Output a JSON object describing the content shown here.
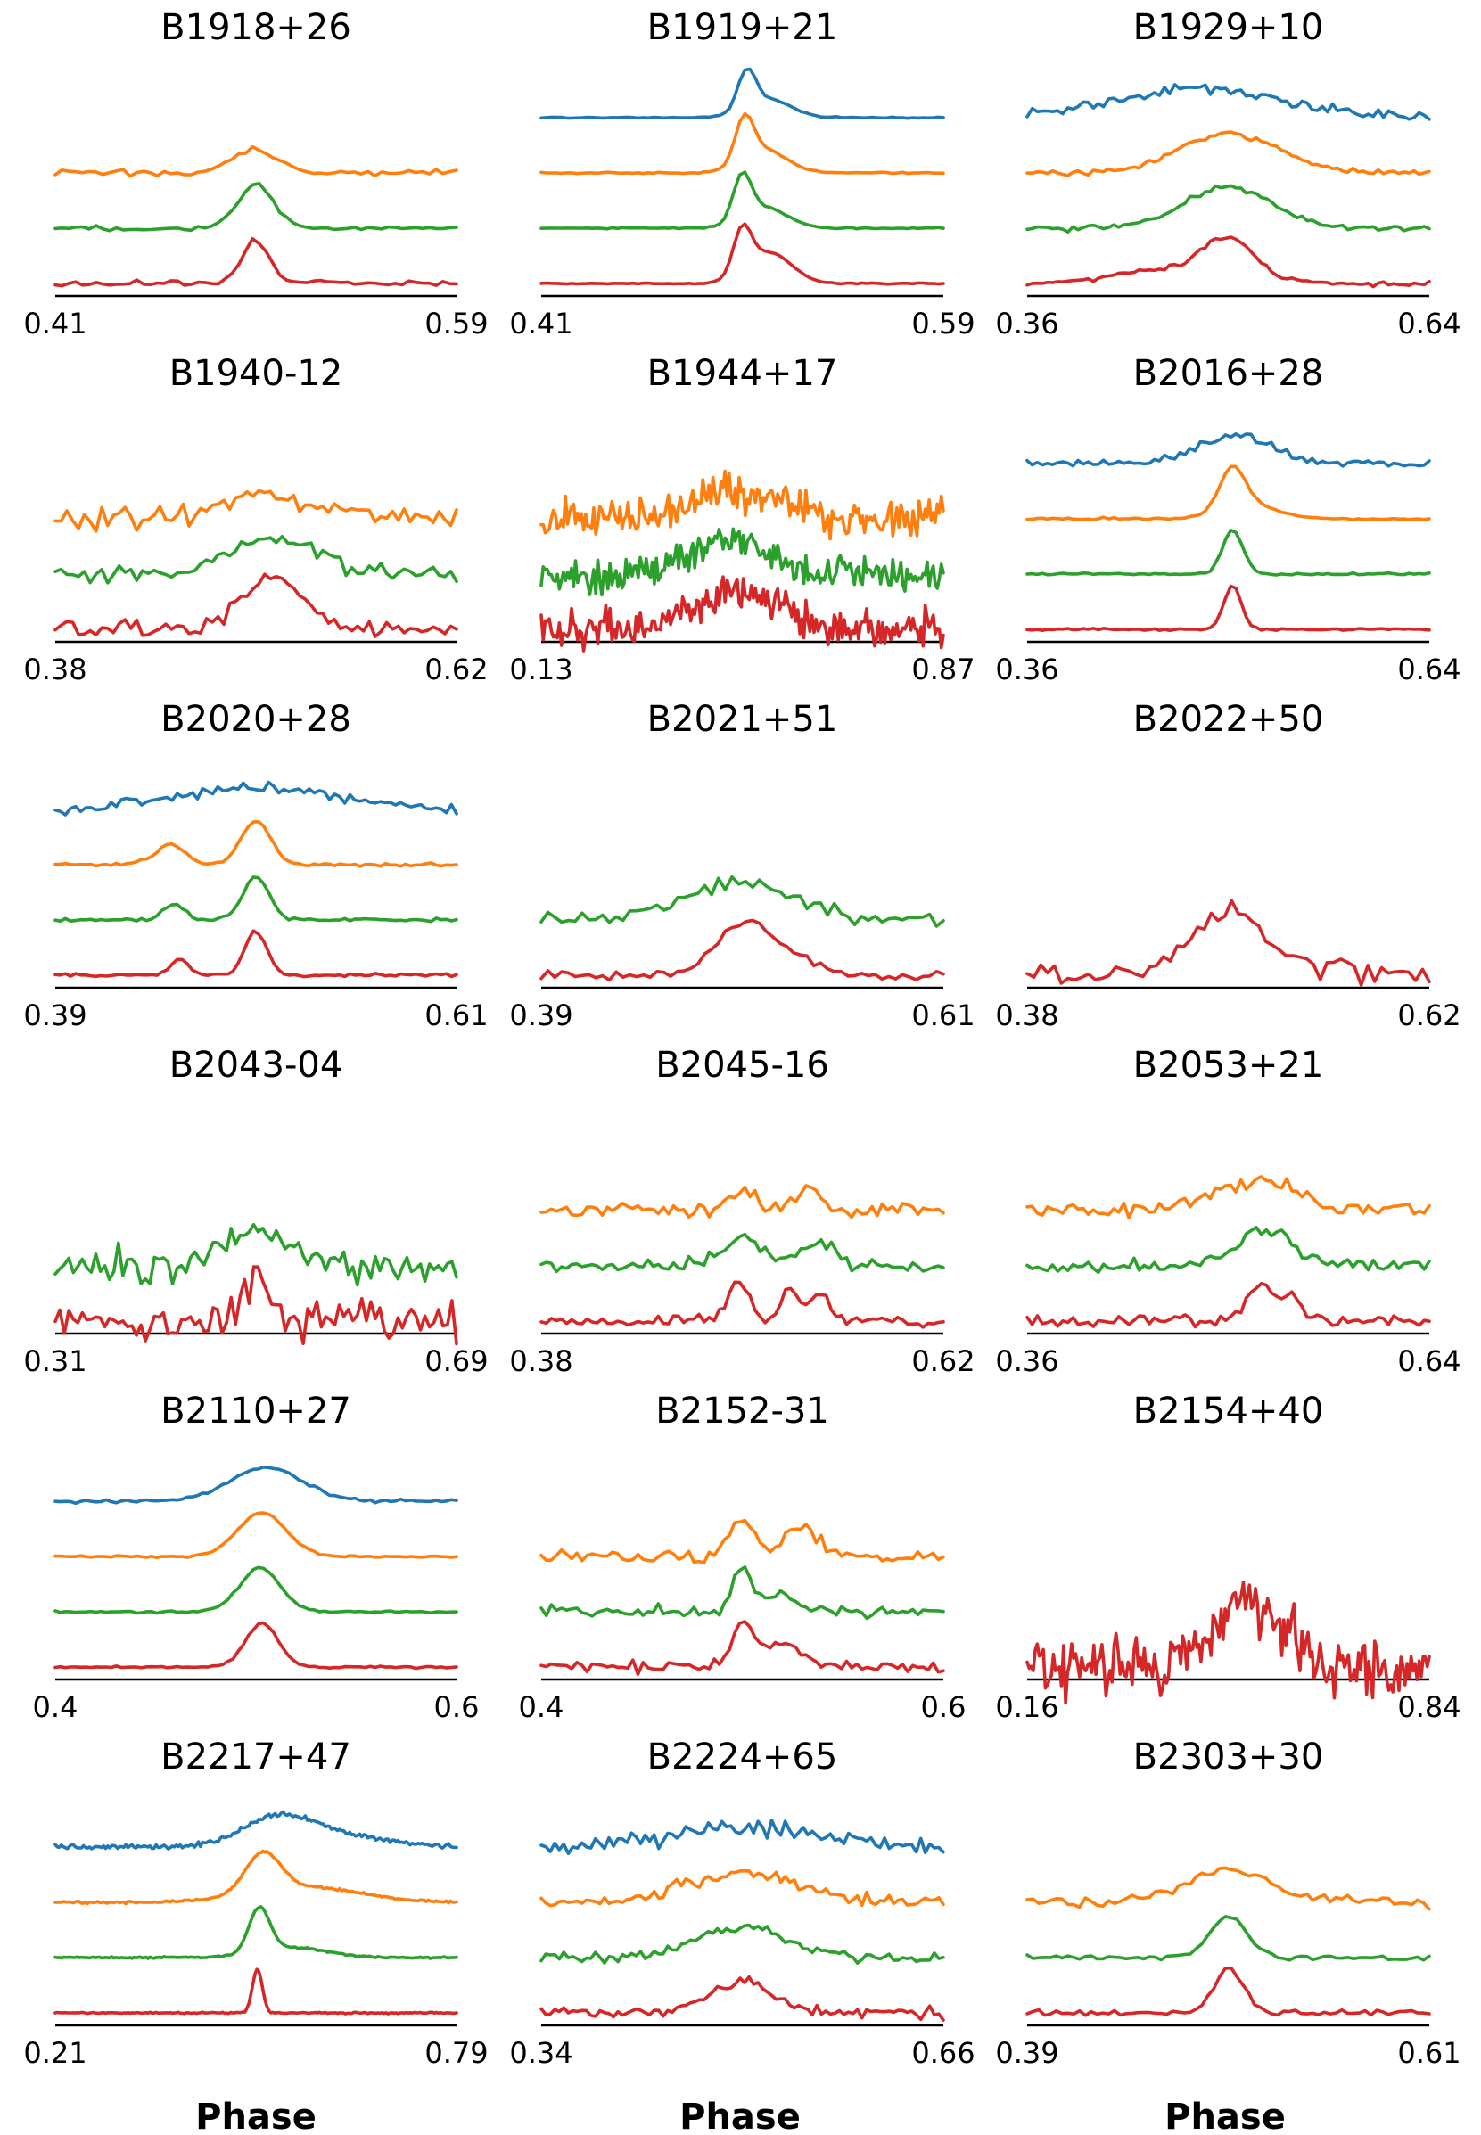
{
  "chart_data": {
    "type": "line",
    "xlabel": "Phase",
    "series_colors": {
      "blue": "#1f77b4",
      "orange": "#ff7f0e",
      "green": "#2ca02c",
      "red": "#d62728"
    },
    "panels": [
      {
        "title": "B1918+26",
        "xmin": "0.41",
        "xmax": "0.59",
        "bands": [
          "orange",
          "green",
          "red"
        ],
        "profiles": {
          "orange": {
            "n": 60,
            "noise": 0.05,
            "base": 0.0,
            "components": [
              [
                0.5,
                0.01,
                0.45
              ]
            ]
          },
          "green": {
            "n": 60,
            "noise": 0.04,
            "base": 0.0,
            "components": [
              [
                0.5,
                0.008,
                0.85
              ]
            ]
          },
          "red": {
            "n": 60,
            "noise": 0.05,
            "base": 0.0,
            "components": [
              [
                0.5,
                0.006,
                0.85
              ]
            ]
          }
        }
      },
      {
        "title": "B1919+21",
        "xmin": "0.41",
        "xmax": "0.59",
        "bands": [
          "blue",
          "orange",
          "green",
          "red"
        ],
        "profiles": {
          "blue": {
            "n": 80,
            "noise": 0.012,
            "base": 0.0,
            "components": [
              [
                0.502,
                0.004,
                0.75
              ],
              [
                0.512,
                0.01,
                0.35
              ]
            ]
          },
          "orange": {
            "n": 80,
            "noise": 0.012,
            "base": 0.0,
            "components": [
              [
                0.501,
                0.004,
                0.85
              ],
              [
                0.51,
                0.01,
                0.45
              ]
            ]
          },
          "green": {
            "n": 80,
            "noise": 0.012,
            "base": 0.0,
            "components": [
              [
                0.5,
                0.004,
                0.85
              ],
              [
                0.51,
                0.01,
                0.4
              ]
            ]
          },
          "red": {
            "n": 80,
            "noise": 0.012,
            "base": 0.0,
            "components": [
              [
                0.5,
                0.004,
                0.85
              ],
              [
                0.512,
                0.01,
                0.6
              ]
            ]
          }
        }
      },
      {
        "title": "B1929+10",
        "xmin": "0.36",
        "xmax": "0.64",
        "bands": [
          "blue",
          "orange",
          "green",
          "red"
        ],
        "profiles": {
          "blue": {
            "n": 80,
            "noise": 0.1,
            "base": 0.0,
            "components": [
              [
                0.48,
                0.06,
                0.55
              ]
            ]
          },
          "orange": {
            "n": 80,
            "noise": 0.05,
            "base": 0.0,
            "components": [
              [
                0.5,
                0.035,
                0.75
              ]
            ]
          },
          "green": {
            "n": 80,
            "noise": 0.05,
            "base": 0.0,
            "components": [
              [
                0.5,
                0.03,
                0.8
              ]
            ]
          },
          "red": {
            "n": 80,
            "noise": 0.05,
            "base": 0.0,
            "components": [
              [
                0.5,
                0.018,
                0.75
              ],
              [
                0.46,
                0.04,
                0.25
              ]
            ]
          }
        }
      },
      {
        "title": "B1940-12",
        "xmin": "0.38",
        "xmax": "0.62",
        "bands": [
          "orange",
          "green",
          "red"
        ],
        "profiles": {
          "orange": {
            "n": 70,
            "noise": 0.22,
            "base": 0.0,
            "components": [
              [
                0.51,
                0.03,
                0.45
              ]
            ]
          },
          "green": {
            "n": 70,
            "noise": 0.15,
            "base": 0.0,
            "components": [
              [
                0.51,
                0.025,
                0.75
              ]
            ]
          },
          "red": {
            "n": 70,
            "noise": 0.15,
            "base": 0.0,
            "components": [
              [
                0.505,
                0.015,
                0.85
              ],
              [
                0.525,
                0.012,
                0.4
              ]
            ]
          }
        }
      },
      {
        "title": "B1944+17",
        "xmin": "0.13",
        "xmax": "0.87",
        "bands": [
          "orange",
          "green",
          "red"
        ],
        "profiles": {
          "orange": {
            "n": 200,
            "noise": 0.35,
            "base": 0.0,
            "components": [
              [
                0.5,
                0.08,
                0.55
              ]
            ]
          },
          "green": {
            "n": 200,
            "noise": 0.3,
            "base": 0.0,
            "components": [
              [
                0.47,
                0.07,
                0.7
              ]
            ]
          },
          "red": {
            "n": 200,
            "noise": 0.4,
            "base": 0.0,
            "components": [
              [
                0.5,
                0.08,
                0.7
              ]
            ]
          }
        }
      },
      {
        "title": "B2016+28",
        "xmin": "0.36",
        "xmax": "0.64",
        "bands": [
          "blue",
          "orange",
          "green",
          "red"
        ],
        "profiles": {
          "blue": {
            "n": 80,
            "noise": 0.07,
            "base": 0.0,
            "components": [
              [
                0.505,
                0.025,
                0.55
              ]
            ]
          },
          "orange": {
            "n": 80,
            "noise": 0.02,
            "base": 0.0,
            "components": [
              [
                0.503,
                0.009,
                0.8
              ],
              [
                0.515,
                0.02,
                0.25
              ]
            ]
          },
          "green": {
            "n": 80,
            "noise": 0.02,
            "base": 0.0,
            "components": [
              [
                0.503,
                0.007,
                0.85
              ]
            ]
          },
          "red": {
            "n": 80,
            "noise": 0.02,
            "base": 0.0,
            "components": [
              [
                0.503,
                0.006,
                0.85
              ]
            ]
          }
        }
      },
      {
        "title": "B2020+28",
        "xmin": "0.39",
        "xmax": "0.61",
        "bands": [
          "blue",
          "orange",
          "green",
          "red"
        ],
        "profiles": {
          "blue": {
            "n": 80,
            "noise": 0.1,
            "base": 0.0,
            "components": [
              [
                0.5,
                0.04,
                0.45
              ]
            ]
          },
          "orange": {
            "n": 80,
            "noise": 0.03,
            "base": 0.0,
            "components": [
              [
                0.453,
                0.008,
                0.4
              ],
              [
                0.5,
                0.008,
                0.85
              ]
            ]
          },
          "green": {
            "n": 80,
            "noise": 0.03,
            "base": 0.0,
            "components": [
              [
                0.455,
                0.006,
                0.3
              ],
              [
                0.5,
                0.007,
                0.85
              ]
            ]
          },
          "red": {
            "n": 80,
            "noise": 0.03,
            "base": 0.0,
            "components": [
              [
                0.458,
                0.005,
                0.3
              ],
              [
                0.5,
                0.006,
                0.85
              ]
            ]
          }
        }
      },
      {
        "title": "B2021+51",
        "xmin": "0.39",
        "xmax": "0.61",
        "bands": [
          "green",
          "red"
        ],
        "profiles": {
          "green": {
            "n": 60,
            "noise": 0.15,
            "base": 0.0,
            "components": [
              [
                0.5,
                0.03,
                0.75
              ]
            ]
          },
          "red": {
            "n": 60,
            "noise": 0.1,
            "base": 0.0,
            "components": [
              [
                0.5,
                0.015,
                0.85
              ],
              [
                0.52,
                0.02,
                0.3
              ]
            ]
          }
        }
      },
      {
        "title": "B2022+50",
        "xmin": "0.38",
        "xmax": "0.62",
        "bands": [
          "red"
        ],
        "profiles": {
          "red": {
            "n": 60,
            "noise": 0.25,
            "base": 0.0,
            "components": [
              [
                0.5,
                0.025,
                1.2
              ]
            ]
          }
        }
      },
      {
        "title": "B2043-04",
        "xmin": "0.31",
        "xmax": "0.69",
        "bands": [
          "green",
          "red"
        ],
        "profiles": {
          "green": {
            "n": 90,
            "noise": 0.3,
            "base": 0.0,
            "components": [
              [
                0.5,
                0.03,
                0.7
              ]
            ]
          },
          "red": {
            "n": 90,
            "noise": 0.35,
            "base": 0.0,
            "components": [
              [
                0.5,
                0.012,
                0.9
              ]
            ]
          }
        }
      },
      {
        "title": "B2045-16",
        "xmin": "0.38",
        "xmax": "0.62",
        "bands": [
          "orange",
          "green",
          "red"
        ],
        "profiles": {
          "orange": {
            "n": 80,
            "noise": 0.12,
            "base": 0.0,
            "components": [
              [
                0.5,
                0.008,
                0.4
              ],
              [
                0.54,
                0.008,
                0.45
              ]
            ]
          },
          "green": {
            "n": 80,
            "noise": 0.12,
            "base": 0.0,
            "components": [
              [
                0.5,
                0.01,
                0.6
              ],
              [
                0.545,
                0.01,
                0.5
              ]
            ]
          },
          "red": {
            "n": 80,
            "noise": 0.1,
            "base": 0.0,
            "components": [
              [
                0.498,
                0.006,
                0.75
              ],
              [
                0.528,
                0.005,
                0.6
              ],
              [
                0.545,
                0.006,
                0.55
              ]
            ]
          }
        }
      },
      {
        "title": "B2053+21",
        "xmin": "0.36",
        "xmax": "0.64",
        "bands": [
          "orange",
          "green",
          "red"
        ],
        "profiles": {
          "orange": {
            "n": 80,
            "noise": 0.15,
            "base": 0.0,
            "components": [
              [
                0.52,
                0.03,
                0.55
              ]
            ]
          },
          "green": {
            "n": 80,
            "noise": 0.12,
            "base": 0.0,
            "components": [
              [
                0.525,
                0.02,
                0.65
              ]
            ]
          },
          "red": {
            "n": 80,
            "noise": 0.12,
            "base": 0.0,
            "components": [
              [
                0.52,
                0.008,
                0.6
              ],
              [
                0.54,
                0.01,
                0.5
              ]
            ]
          }
        }
      },
      {
        "title": "B2110+27",
        "xmin": "0.4",
        "xmax": "0.6",
        "bands": [
          "blue",
          "orange",
          "green",
          "red"
        ],
        "profiles": {
          "blue": {
            "n": 80,
            "noise": 0.025,
            "base": 0.0,
            "components": [
              [
                0.505,
                0.018,
                0.65
              ]
            ]
          },
          "orange": {
            "n": 80,
            "noise": 0.02,
            "base": 0.0,
            "components": [
              [
                0.503,
                0.012,
                0.85
              ]
            ]
          },
          "green": {
            "n": 80,
            "noise": 0.02,
            "base": 0.0,
            "components": [
              [
                0.502,
                0.01,
                0.85
              ]
            ]
          },
          "red": {
            "n": 80,
            "noise": 0.02,
            "base": 0.0,
            "components": [
              [
                0.503,
                0.008,
                0.85
              ]
            ]
          }
        }
      },
      {
        "title": "B2152-31",
        "xmin": "0.4",
        "xmax": "0.6",
        "bands": [
          "orange",
          "green",
          "red"
        ],
        "profiles": {
          "orange": {
            "n": 80,
            "noise": 0.12,
            "base": 0.0,
            "components": [
              [
                0.5,
                0.006,
                0.75
              ],
              [
                0.53,
                0.008,
                0.55
              ]
            ]
          },
          "green": {
            "n": 80,
            "noise": 0.1,
            "base": 0.0,
            "components": [
              [
                0.5,
                0.005,
                0.85
              ],
              [
                0.52,
                0.008,
                0.3
              ]
            ]
          },
          "red": {
            "n": 80,
            "noise": 0.1,
            "base": 0.0,
            "components": [
              [
                0.5,
                0.005,
                0.8
              ],
              [
                0.52,
                0.012,
                0.4
              ]
            ]
          }
        }
      },
      {
        "title": "B2154+40",
        "xmin": "0.16",
        "xmax": "0.84",
        "bands": [
          "red"
        ],
        "profiles": {
          "red": {
            "n": 200,
            "noise": 0.55,
            "base": 0.0,
            "components": [
              [
                0.53,
                0.06,
                1.2
              ]
            ]
          }
        }
      },
      {
        "title": "B2217+47",
        "xmin": "0.21",
        "xmax": "0.79",
        "bands": [
          "blue",
          "orange",
          "green",
          "red"
        ],
        "profiles": {
          "blue": {
            "n": 200,
            "noise": 0.04,
            "base": 0.0,
            "components": [
              [
                0.53,
                0.05,
                0.45
              ],
              [
                0.6,
                0.08,
                0.25
              ]
            ]
          },
          "orange": {
            "n": 200,
            "noise": 0.02,
            "base": 0.0,
            "components": [
              [
                0.51,
                0.025,
                0.75
              ],
              [
                0.57,
                0.08,
                0.3
              ]
            ]
          },
          "green": {
            "n": 200,
            "noise": 0.015,
            "base": 0.0,
            "components": [
              [
                0.505,
                0.015,
                0.85
              ],
              [
                0.55,
                0.05,
                0.2
              ]
            ]
          },
          "red": {
            "n": 200,
            "noise": 0.012,
            "base": 0.0,
            "components": [
              [
                0.502,
                0.007,
                0.85
              ]
            ]
          }
        }
      },
      {
        "title": "B2224+65",
        "xmin": "0.34",
        "xmax": "0.66",
        "bands": [
          "blue",
          "orange",
          "green",
          "red"
        ],
        "profiles": {
          "blue": {
            "n": 90,
            "noise": 0.15,
            "base": 0.0,
            "components": [
              [
                0.5,
                0.06,
                0.35
              ]
            ]
          },
          "orange": {
            "n": 90,
            "noise": 0.12,
            "base": 0.0,
            "components": [
              [
                0.5,
                0.045,
                0.55
              ]
            ]
          },
          "green": {
            "n": 90,
            "noise": 0.1,
            "base": 0.0,
            "components": [
              [
                0.5,
                0.035,
                0.6
              ]
            ]
          },
          "red": {
            "n": 90,
            "noise": 0.1,
            "base": 0.0,
            "components": [
              [
                0.5,
                0.025,
                0.6
              ]
            ]
          }
        }
      },
      {
        "title": "B2303+30",
        "xmin": "0.39",
        "xmax": "0.61",
        "bands": [
          "orange",
          "green",
          "red"
        ],
        "profiles": {
          "orange": {
            "n": 70,
            "noise": 0.1,
            "base": 0.0,
            "components": [
              [
                0.5,
                0.025,
                0.6
              ]
            ]
          },
          "green": {
            "n": 70,
            "noise": 0.05,
            "base": 0.0,
            "components": [
              [
                0.5,
                0.01,
                0.8
              ]
            ]
          },
          "red": {
            "n": 70,
            "noise": 0.06,
            "base": 0.0,
            "components": [
              [
                0.5,
                0.008,
                0.85
              ]
            ]
          }
        }
      }
    ]
  }
}
